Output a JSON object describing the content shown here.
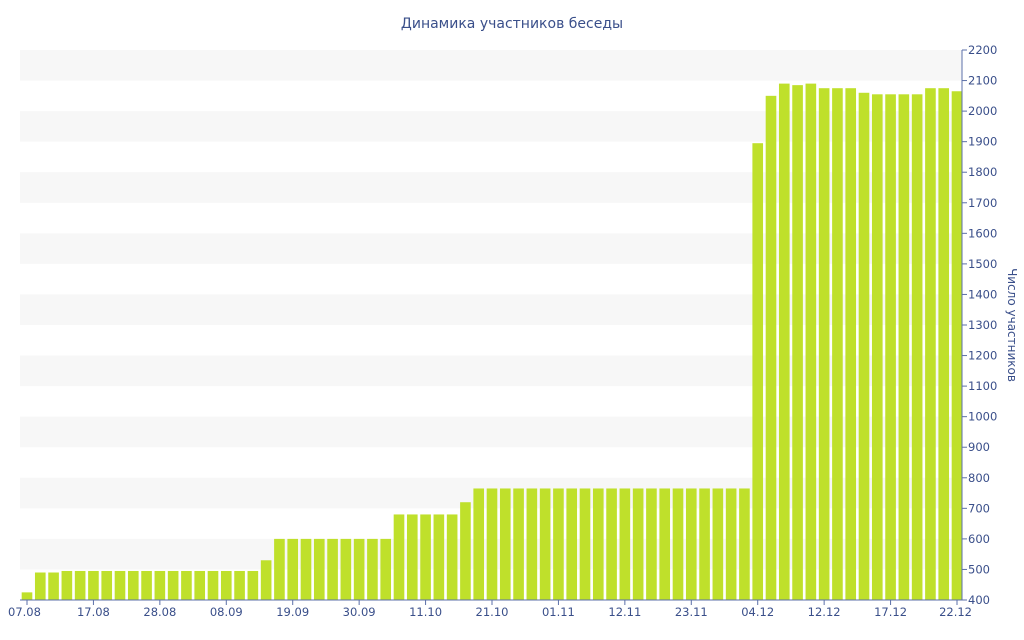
{
  "chart_data": {
    "type": "bar",
    "title": "Динамика участников беседы",
    "xlabel": "",
    "ylabel": "Число участников",
    "ylim": [
      400,
      2200
    ],
    "y_ticks": [
      400,
      500,
      600,
      700,
      800,
      900,
      1000,
      1100,
      1200,
      1300,
      1400,
      1500,
      1600,
      1700,
      1800,
      1900,
      2000,
      2100,
      2200
    ],
    "y_axis_side": "right",
    "x_tick_labels": [
      "07.08",
      "17.08",
      "28.08",
      "08.09",
      "19.09",
      "30.09",
      "11.10",
      "21.10",
      "01.11",
      "12.11",
      "23.11",
      "04.12",
      "12.12",
      "17.12",
      "22.12"
    ],
    "grid": "alternating horizontal bands",
    "bar_color": "#bfe02b",
    "values": [
      425,
      490,
      490,
      495,
      495,
      495,
      495,
      495,
      495,
      495,
      495,
      495,
      495,
      495,
      495,
      495,
      495,
      495,
      530,
      600,
      600,
      600,
      600,
      600,
      600,
      600,
      600,
      600,
      680,
      680,
      680,
      680,
      680,
      720,
      765,
      765,
      765,
      765,
      765,
      765,
      765,
      765,
      765,
      765,
      765,
      765,
      765,
      765,
      765,
      765,
      765,
      765,
      765,
      765,
      765,
      1895,
      2050,
      2090,
      2085,
      2090,
      2075,
      2075,
      2075,
      2060,
      2055,
      2055,
      2055,
      2055,
      2075,
      2075,
      2065
    ]
  }
}
